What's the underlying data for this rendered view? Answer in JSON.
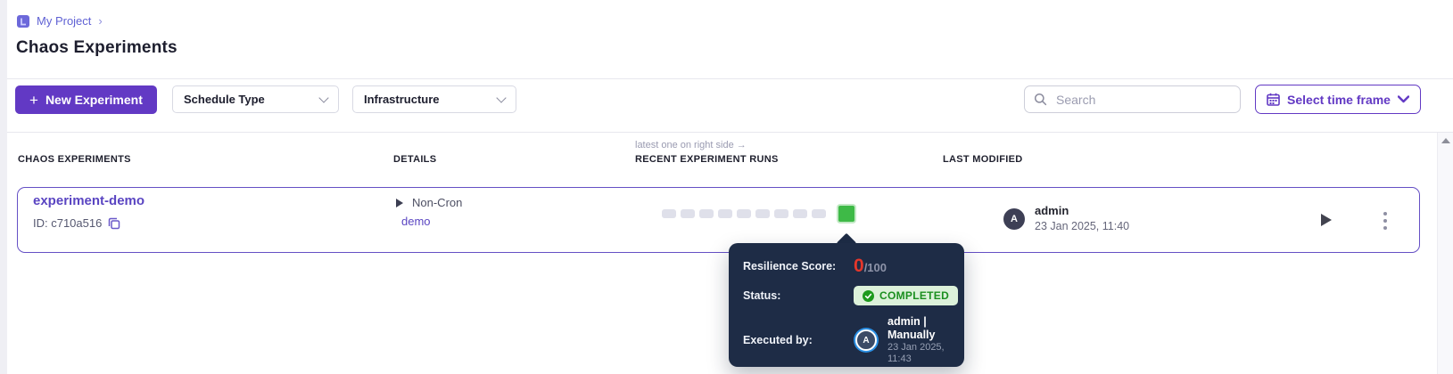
{
  "breadcrumb": {
    "project": "My Project",
    "separator": "›"
  },
  "page": {
    "title": "Chaos Experiments"
  },
  "toolbar": {
    "new_experiment": {
      "icon": "+",
      "label": "New Experiment"
    },
    "schedule_type_label": "Schedule Type",
    "infrastructure_label": "Infrastructure",
    "search_placeholder": "Search",
    "time_frame_label": "Select time frame"
  },
  "table": {
    "annotation": "latest one on right side →",
    "headers": [
      "CHAOS EXPERIMENTS",
      "DETAILS",
      "RECENT EXPERIMENT RUNS",
      "LAST MODIFIED"
    ]
  },
  "row": {
    "name": "experiment-demo",
    "id_label": "ID: c710a516",
    "schedule_type": "Non-Cron",
    "infrastructure": "demo",
    "runs": {
      "past_count": 9,
      "latest_status": "completed"
    },
    "modified_by": "admin",
    "modified_avatar_initial": "A",
    "modified_at": "23 Jan 2025, 11:40"
  },
  "tooltip": {
    "resilience_label": "Resilience Score:",
    "score": "0",
    "score_total": "/100",
    "status_label": "Status:",
    "status_value": "COMPLETED",
    "executed_label": "Executed by:",
    "executed_avatar_initial": "A",
    "executed_by": "admin | Manually",
    "executed_at": "23 Jan 2025, 11:43"
  },
  "colors": {
    "accent_purple": "#6239c4",
    "run_green": "#3eba47",
    "badge_bg": "#dcf1da",
    "badge_text": "#1b8f1f",
    "tooltip_bg": "#1e2c46",
    "score_red": "#e5372b"
  }
}
